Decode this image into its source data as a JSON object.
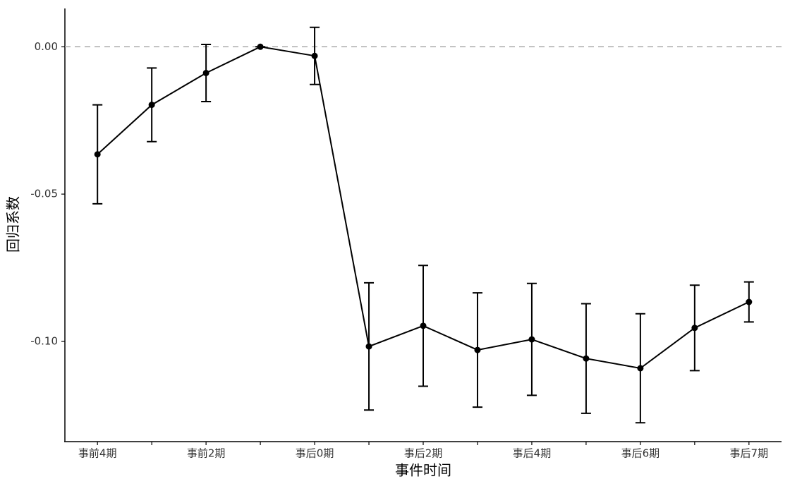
{
  "chart_data": {
    "type": "errorbar-line",
    "x_label": "事件时间",
    "y_label": "回归系数",
    "categories": [
      "事前4期",
      null,
      "事前2期",
      null,
      "事后0期",
      null,
      "事后2期",
      null,
      "事后4期",
      null,
      "事后6期",
      null,
      "事后7期"
    ],
    "values": [
      -0.0365,
      -0.0197,
      -0.0089,
      0,
      -0.0031,
      -0.1017,
      -0.0947,
      -0.1029,
      -0.0993,
      -0.1058,
      -0.1091,
      -0.0954,
      -0.0866
    ],
    "errors": [
      0.0168,
      0.0125,
      0.0097,
      0,
      0.0097,
      0.0216,
      0.0205,
      0.0194,
      0.019,
      0.0186,
      0.0185,
      0.0145,
      0.0068
    ],
    "color": "#000000",
    "ylim": [
      -0.134,
      0.013
    ],
    "yticks": [
      {
        "value": 0,
        "label": "0.00"
      },
      {
        "value": -0.05,
        "label": "-0.05"
      },
      {
        "value": -0.1,
        "label": "-0.10"
      }
    ],
    "reference_line": 0
  }
}
